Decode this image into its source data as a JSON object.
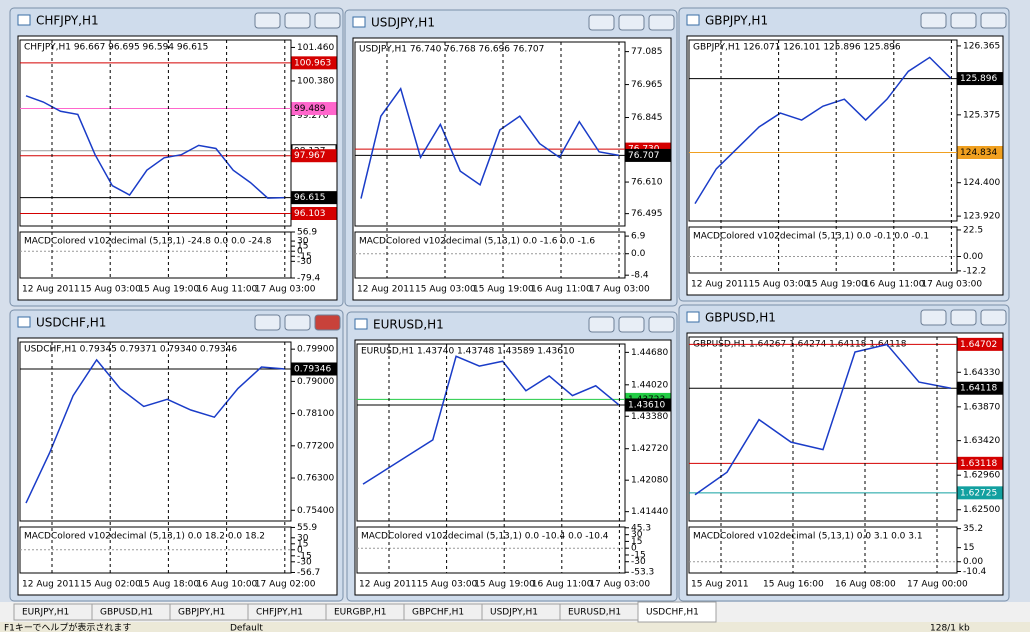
{
  "windows": [
    {
      "title": "CHFJPY,H1",
      "header": "CHFJPY,H1  96.667 96.695 96.594 96.615",
      "ylim": [
        95.7,
        101.7
      ],
      "yticks": [
        {
          "value": 101.46,
          "label": "101.460"
        },
        {
          "value": 100.38,
          "label": "100.380"
        },
        {
          "value": 99.27,
          "label": "99.270"
        },
        {
          "value": 98.19,
          "label": "98.190"
        }
      ],
      "markers": [
        {
          "value": 100.963,
          "color": "#d40000"
        },
        {
          "value": 99.489,
          "color": "#ff66cc"
        },
        {
          "value": 98.127,
          "color": "#ffffff"
        },
        {
          "value": 97.967,
          "color": "#d40000"
        },
        {
          "value": 96.615,
          "color": "#000000"
        },
        {
          "value": 96.103,
          "color": "#d40000"
        }
      ],
      "closes": [
        99.9,
        99.7,
        99.4,
        99.3,
        98.0,
        97.0,
        96.7,
        97.5,
        97.9,
        98.0,
        98.3,
        98.2,
        97.5,
        97.1,
        96.6,
        96.615
      ],
      "macd": "MACDColored v102decimal (5,13,1) -24.8 0.0 0.0 -24.8",
      "mlim": [
        -79.4,
        56.9
      ],
      "mticks": [
        56.9,
        30,
        15,
        0,
        -15,
        -30,
        -79.4
      ],
      "xlabels": [
        "12 Aug 2011",
        "15 Aug 03:00",
        "15 Aug 19:00",
        "16 Aug 11:00",
        "17 Aug 03:00"
      ]
    },
    {
      "title": "USDJPY,H1",
      "header": "USDJPY,H1  76.740 76.768 76.696 76.707",
      "ylim": [
        76.45,
        77.12
      ],
      "yticks": [
        77.085,
        76.965,
        76.845,
        {
          "value": 76.61,
          "label": "76.610"
        },
        76.495
      ],
      "markers": [
        {
          "value": 76.73,
          "label": "76.730",
          "color": "#d40000"
        },
        {
          "value": 76.707,
          "color": "#000000"
        }
      ],
      "closes": [
        76.55,
        76.85,
        76.95,
        76.7,
        76.82,
        76.65,
        76.6,
        76.8,
        76.85,
        76.75,
        76.7,
        76.83,
        76.72,
        76.707
      ],
      "macd": "MACDColored v102decimal (5,13,1) 0.0 -1.6 0.0 -1.6",
      "mlim": [
        -9.5,
        8.5
      ],
      "mticks": [
        6.9,
        {
          "value": 0,
          "label": "0.0"
        },
        -8.4
      ],
      "xlabels": [
        "12 Aug 2011",
        "15 Aug 03:00",
        "15 Aug 19:00",
        "16 Aug 11:00",
        "17 Aug 03:00"
      ]
    },
    {
      "title": "GBPJPY,H1",
      "header": "GBPJPY,H1  126.071 126.101 125.896 125.896",
      "ylim": [
        123.85,
        126.45
      ],
      "yticks": [
        126.365,
        125.375,
        {
          "value": 124.4,
          "label": "124.400"
        },
        {
          "value": 123.92,
          "label": "123.920"
        }
      ],
      "markers": [
        {
          "value": 125.896,
          "color": "#000000"
        },
        {
          "value": 124.834,
          "color": "#f0a020"
        }
      ],
      "closes": [
        124.1,
        124.6,
        124.9,
        125.2,
        125.4,
        125.3,
        125.5,
        125.6,
        125.3,
        125.6,
        126.0,
        126.2,
        125.896
      ],
      "macd": "MACDColored v102decimal (5,13,1) 0.0 -0.1 0.0 -0.1",
      "mlim": [
        -14,
        25
      ],
      "mticks": [
        22.5,
        {
          "value": 0,
          "label": "0.00"
        },
        -12.2
      ],
      "xlabels": [
        "12 Aug 2011",
        "15 Aug 03:00",
        "15 Aug 19:00",
        "16 Aug 11:00",
        "17 Aug 03:00"
      ]
    },
    {
      "title": "USDCHF,H1",
      "header": "USDCHF,H1  0.79345 0.79371 0.79340 0.79346",
      "ylim": [
        0.751,
        0.801
      ],
      "yticks": [
        {
          "value": 0.799,
          "label": "0.79900"
        },
        {
          "value": 0.79,
          "label": "0.79000"
        },
        {
          "value": 0.781,
          "label": "0.78100"
        },
        {
          "value": 0.772,
          "label": "0.77200"
        },
        {
          "value": 0.763,
          "label": "0.76300"
        },
        {
          "value": 0.754,
          "label": "0.75400"
        }
      ],
      "markers": [
        {
          "value": 0.79346,
          "color": "#000000"
        }
      ],
      "closes": [
        0.756,
        0.77,
        0.786,
        0.796,
        0.788,
        0.783,
        0.785,
        0.782,
        0.78,
        0.788,
        0.794,
        0.79346
      ],
      "macd": "MACDColored v102decimal (5,13,1) 0.0 18.2 0.0 18.2",
      "mlim": [
        -58,
        57
      ],
      "mticks": [
        55.9,
        30,
        15,
        0,
        -15,
        -30,
        -56.7
      ],
      "xlabels": [
        "12 Aug 2011",
        "15 Aug 02:00",
        "15 Aug 18:00",
        "16 Aug 10:00",
        "17 Aug 02:00"
      ]
    },
    {
      "title": "EURUSD,H1",
      "header": "EURUSD,H1  1.43740 1.43748 1.43589 1.43610",
      "ylim": [
        1.4125,
        1.4485
      ],
      "yticks": [
        {
          "value": 1.4468,
          "label": "1.44680"
        },
        {
          "value": 1.4402,
          "label": "1.44020"
        },
        {
          "value": 1.4338,
          "label": "1.43380"
        },
        {
          "value": 1.4272,
          "label": "1.42720"
        },
        {
          "value": 1.4208,
          "label": "1.42080"
        },
        {
          "value": 1.4144,
          "label": "1.41440"
        }
      ],
      "markers": [
        {
          "value": 1.43723,
          "color": "#22cc44"
        },
        {
          "value": 1.4361,
          "label": "1.43610",
          "color": "#000000"
        }
      ],
      "closes": [
        1.42,
        1.423,
        1.426,
        1.429,
        1.446,
        1.444,
        1.445,
        1.439,
        1.442,
        1.438,
        1.44,
        1.4361
      ],
      "macd": "MACDColored v102decimal (5,13,1) 0.0 -10.4 0.0 -10.4",
      "mlim": [
        -55,
        47
      ],
      "mticks": [
        45.3,
        30,
        15,
        0,
        -15,
        -30,
        -53.3
      ],
      "xlabels": [
        "12 Aug 2011",
        "15 Aug 03:00",
        "15 Aug 19:00",
        "16 Aug 11:00",
        "17 Aug 03:00"
      ]
    },
    {
      "title": "GBPUSD,H1",
      "header": "GBPUSD,H1  1.64267 1.64274 1.64118 1.64118",
      "ylim": [
        1.6235,
        1.648
      ],
      "yticks": [
        {
          "value": 1.6433,
          "label": "1.64330"
        },
        {
          "value": 1.6387,
          "label": "1.63870"
        },
        {
          "value": 1.6342,
          "label": "1.63420"
        },
        {
          "value": 1.6296,
          "label": "1.62960"
        },
        {
          "value": 1.625,
          "label": "1.62500"
        }
      ],
      "markers": [
        {
          "value": 1.64702,
          "color": "#d40000"
        },
        {
          "value": 1.64118,
          "color": "#000000"
        },
        {
          "value": 1.63118,
          "color": "#d40000"
        },
        {
          "value": 1.62725,
          "color": "#12a0a0"
        }
      ],
      "closes": [
        1.627,
        1.63,
        1.637,
        1.634,
        1.633,
        1.646,
        1.647,
        1.642,
        1.64118
      ],
      "macd": "MACDColored v102decimal (5,13,1) 0.0 3.1 0.0 3.1",
      "mlim": [
        -12,
        37
      ],
      "mticks": [
        35.2,
        15,
        {
          "value": 0,
          "label": "0.00"
        },
        -10.4
      ],
      "xlabels": [
        "15 Aug 2011",
        "15 Aug 16:00",
        "16 Aug 08:00",
        "17 Aug 00:00"
      ]
    }
  ],
  "tabs": [
    "EURJPY,H1",
    "GBPUSD,H1",
    "GBPJPY,H1",
    "CHFJPY,H1",
    "EURGBP,H1",
    "GBPCHF,H1",
    "USDJPY,H1",
    "EURUSD,H1",
    "USDCHF,H1"
  ],
  "active_tab": "USDCHF,H1",
  "status": {
    "help": "F1キーでヘルプが表示されます",
    "profile": "Default",
    "traffic": "128/1 kb"
  }
}
